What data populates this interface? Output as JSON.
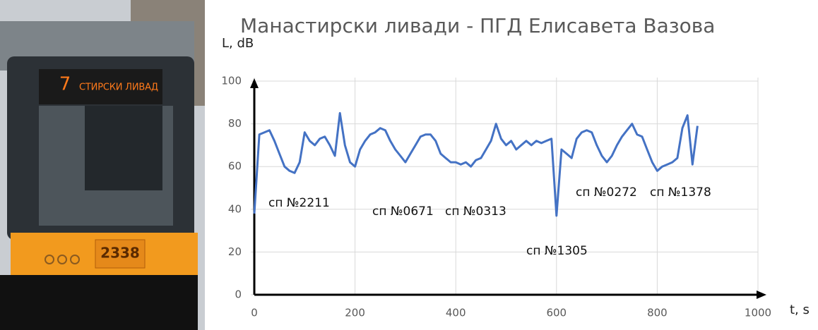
{
  "photo": {
    "route": "7",
    "sign": "СТИРСКИ ЛИВАД",
    "number": "2338"
  },
  "chart_data": {
    "type": "line",
    "title": "Манастирски ливади - ПГД Елисавета Вазова",
    "ylabel": "L, dB",
    "xlabel": "t, s",
    "x": [
      0,
      10,
      20,
      30,
      40,
      50,
      60,
      70,
      80,
      90,
      100,
      110,
      120,
      130,
      140,
      150,
      160,
      170,
      180,
      190,
      200,
      210,
      220,
      230,
      240,
      250,
      260,
      270,
      280,
      290,
      300,
      310,
      320,
      330,
      340,
      350,
      360,
      370,
      380,
      390,
      400,
      410,
      420,
      430,
      440,
      450,
      460,
      470,
      480,
      490,
      500,
      510,
      520,
      530,
      540,
      550,
      560,
      570,
      580,
      590,
      600,
      610,
      620,
      630,
      640,
      650,
      660,
      670,
      680,
      690,
      700,
      710,
      720,
      730,
      740,
      750,
      760,
      770,
      780,
      790,
      800,
      810,
      820,
      830,
      840,
      850,
      860,
      870,
      880
    ],
    "values": [
      38,
      75,
      76,
      77,
      72,
      66,
      60,
      58,
      57,
      62,
      76,
      72,
      70,
      73,
      74,
      70,
      65,
      85,
      70,
      62,
      60,
      68,
      72,
      75,
      76,
      78,
      77,
      72,
      68,
      65,
      62,
      66,
      70,
      74,
      75,
      75,
      72,
      66,
      64,
      62,
      62,
      61,
      62,
      60,
      63,
      64,
      68,
      72,
      80,
      73,
      70,
      72,
      68,
      70,
      72,
      70,
      72,
      71,
      72,
      73,
      37,
      68,
      66,
      64,
      73,
      76,
      77,
      76,
      70,
      65,
      62,
      65,
      70,
      74,
      77,
      80,
      75,
      74,
      68,
      62,
      58,
      60,
      61,
      62,
      64,
      78,
      84,
      61,
      79
    ],
    "color": "#4472c4",
    "xlim": [
      0,
      1000
    ],
    "ylim": [
      0,
      100
    ],
    "xticks": [
      0,
      200,
      400,
      600,
      800,
      1000
    ],
    "yticks": [
      0,
      20,
      40,
      60,
      80,
      100
    ],
    "grid": true,
    "annotations": [
      "сп №2211",
      "сп №0671",
      "сп №0313",
      "сп №1305",
      "сп №0272",
      "сп №1378"
    ]
  }
}
